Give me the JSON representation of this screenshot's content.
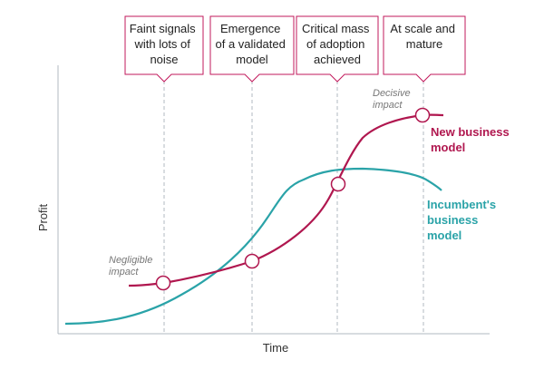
{
  "stages": [
    {
      "lines": [
        "Faint signals",
        "with lots of",
        "noise"
      ]
    },
    {
      "lines": [
        "Emergence",
        "of a validated",
        "model"
      ]
    },
    {
      "lines": [
        "Critical mass",
        "of adoption",
        "achieved"
      ]
    },
    {
      "lines": [
        "At scale and",
        "mature"
      ]
    }
  ],
  "axes": {
    "y_label": "Profit",
    "x_label": "Time"
  },
  "annotations": {
    "negligible": [
      "Negligible",
      "impact"
    ],
    "decisive": [
      "Decisive",
      "impact"
    ]
  },
  "series": {
    "new": {
      "label_lines": [
        "New business",
        "model"
      ],
      "color": "#b0174f"
    },
    "incumbent": {
      "label_lines": [
        "Incumbent's",
        "business",
        "model"
      ],
      "color": "#2aa3a8"
    }
  },
  "colors": {
    "box_border": "#c2185b",
    "guide": "#b0b8c0",
    "axis": "#b0b8c0"
  }
}
